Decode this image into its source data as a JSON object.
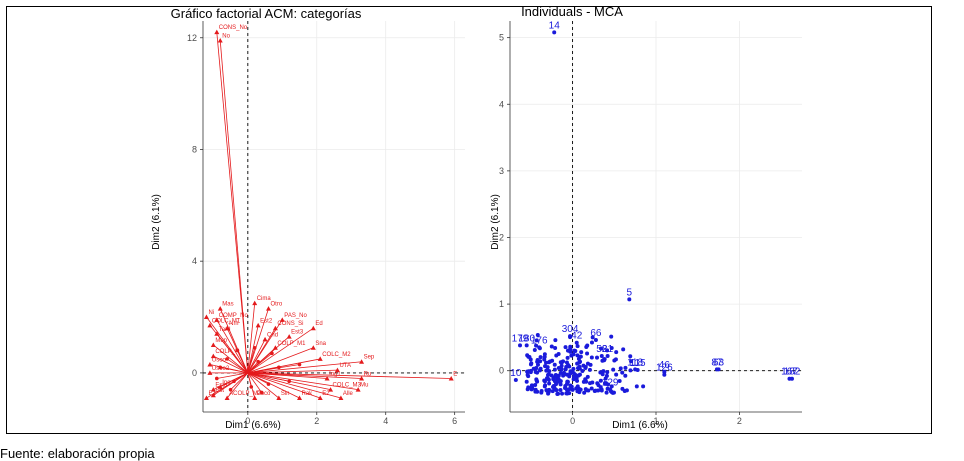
{
  "caption": "Fuente: elaboración propia",
  "chart_data": [
    {
      "type": "scatter",
      "title": "Gráfico factorial ACM: categorías",
      "xlabel": "Dim1 (6.6%)",
      "ylabel": "Dim2 (6.1%)",
      "xlim": [
        -1.3,
        6.3
      ],
      "ylim": [
        -1.4,
        12.6
      ],
      "xticks": [
        0,
        2,
        4,
        6
      ],
      "yticks": [
        0,
        4,
        8,
        12
      ],
      "color": "#e41a1c",
      "points": [
        {
          "label": "CONS_No",
          "x": -0.9,
          "y": 12.2
        },
        {
          "label": "No",
          "x": -0.8,
          "y": 11.9
        },
        {
          "label": "Cima",
          "x": 0.2,
          "y": 2.5
        },
        {
          "label": "Otro",
          "x": 0.6,
          "y": 2.3
        },
        {
          "label": "Mas",
          "x": -0.8,
          "y": 2.3
        },
        {
          "label": "PAS_No",
          "x": 1.0,
          "y": 1.9
        },
        {
          "label": "COMP_No",
          "x": -0.9,
          "y": 1.9
        },
        {
          "label": "Ni",
          "x": -1.2,
          "y": 2.0
        },
        {
          "label": "Est2",
          "x": 0.3,
          "y": 1.7
        },
        {
          "label": "CONS_Si",
          "x": 0.8,
          "y": 1.6
        },
        {
          "label": "COLC_M1",
          "x": -1.1,
          "y": 1.7
        },
        {
          "label": "Nm",
          "x": -0.6,
          "y": 1.6
        },
        {
          "label": "Ed",
          "x": 1.9,
          "y": 1.6
        },
        {
          "label": "Est3",
          "x": 1.2,
          "y": 1.3
        },
        {
          "label": "Tard",
          "x": -0.9,
          "y": 1.4
        },
        {
          "label": "Cnd",
          "x": 0.5,
          "y": 1.2
        },
        {
          "label": "Sna",
          "x": 1.9,
          "y": 0.9
        },
        {
          "label": "Mup",
          "x": -1.0,
          "y": 1.0
        },
        {
          "label": "COLP_M1",
          "x": 0.8,
          "y": 0.9
        },
        {
          "label": "COLC_M2",
          "x": 2.1,
          "y": 0.5
        },
        {
          "label": "COLP_N",
          "x": -1.0,
          "y": 0.6
        },
        {
          "label": "Sep",
          "x": 3.3,
          "y": 0.4
        },
        {
          "label": "Usoo",
          "x": -1.1,
          "y": 0.3
        },
        {
          "label": "UTA",
          "x": 2.6,
          "y": 0.1
        },
        {
          "label": "Usoo2",
          "x": -1.1,
          "y": 0.0
        },
        {
          "label": "Ru",
          "x": 3.3,
          "y": -0.2
        },
        {
          "label": "Ing1",
          "x": 2.3,
          "y": -0.2
        },
        {
          "label": "Esta",
          "x": -1.0,
          "y": -0.6
        },
        {
          "label": "COLC_M3",
          "x": 2.4,
          "y": -0.6
        },
        {
          "label": "Mu",
          "x": 3.2,
          "y": -0.6
        },
        {
          "label": "ACOLP_M2",
          "x": -0.6,
          "y": -0.9
        },
        {
          "label": "Poco",
          "x": 0.2,
          "y": -0.9
        },
        {
          "label": "Sin",
          "x": 0.9,
          "y": -0.9
        },
        {
          "label": "Rak",
          "x": 1.5,
          "y": -0.9
        },
        {
          "label": "E2",
          "x": 2.1,
          "y": -0.9
        },
        {
          "label": "Alle",
          "x": 2.7,
          "y": -0.9
        },
        {
          "label": "E1",
          "x": -1.2,
          "y": -0.9
        },
        {
          "label": "Ing",
          "x": -0.8,
          "y": -0.5
        },
        {
          "label": "Est",
          "x": -1.0,
          "y": -0.8
        },
        {
          "label": "E",
          "x": 5.9,
          "y": -0.2
        }
      ]
    },
    {
      "type": "scatter",
      "title": "Individuals - MCA",
      "xlabel": "Dim1 (6.6%)",
      "ylabel": "Dim2 (6.1%)",
      "xlim": [
        -0.75,
        2.75
      ],
      "ylim": [
        -0.62,
        5.25
      ],
      "xticks": [
        0,
        1,
        2
      ],
      "yticks": [
        0,
        1,
        2,
        3,
        4,
        5
      ],
      "color": "#1a1adb",
      "points": [
        {
          "label": "14",
          "x": -0.22,
          "y": 5.08
        },
        {
          "label": "5",
          "x": 0.68,
          "y": 1.07
        },
        {
          "label": "87",
          "x": 1.73,
          "y": 0.02
        },
        {
          "label": "63",
          "x": 1.75,
          "y": 0.02
        },
        {
          "label": "167",
          "x": 2.6,
          "y": -0.12
        },
        {
          "label": "182",
          "x": 2.63,
          "y": -0.12
        },
        {
          "label": "46",
          "x": 1.1,
          "y": -0.02
        },
        {
          "label": "126",
          "x": 1.1,
          "y": -0.06
        },
        {
          "label": "118",
          "x": 0.75,
          "y": 0.02
        },
        {
          "label": "115",
          "x": 0.78,
          "y": 0.01
        },
        {
          "label": "179",
          "x": -0.63,
          "y": 0.38
        },
        {
          "label": "180",
          "x": -0.55,
          "y": 0.38
        },
        {
          "label": "304",
          "x": -0.03,
          "y": 0.52
        },
        {
          "label": "66",
          "x": 0.28,
          "y": 0.46
        },
        {
          "label": "10",
          "x": -0.68,
          "y": -0.14
        },
        {
          "label": "129",
          "x": 0.45,
          "y": -0.28
        },
        {
          "label": "52",
          "x": 0.35,
          "y": 0.22
        },
        {
          "label": "81",
          "x": 0.42,
          "y": 0.22
        },
        {
          "label": "176",
          "x": -0.4,
          "y": 0.35
        },
        {
          "label": "42",
          "x": 0.05,
          "y": 0.42
        }
      ]
    }
  ]
}
